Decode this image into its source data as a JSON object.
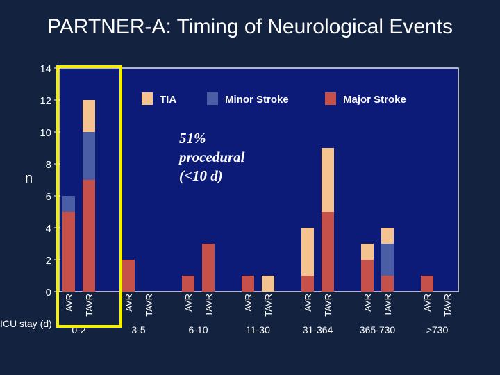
{
  "title": "PARTNER-A: Timing of Neurological Events",
  "chart_data": {
    "type": "bar",
    "stacked": true,
    "ylabel": "n",
    "xlabel": "ICU stay (d)",
    "ylim": [
      0,
      14
    ],
    "yticks": [
      0,
      2,
      4,
      6,
      8,
      10,
      12,
      14
    ],
    "grid": false,
    "legend_position": "top",
    "groups": [
      "0-2",
      "3-5",
      "6-10",
      "11-30",
      "31-364",
      "365-730",
      ">730"
    ],
    "arms": [
      "AVR",
      "TAVR"
    ],
    "series": [
      {
        "name": "Major Stroke",
        "color": "#c6504a",
        "values": [
          [
            5,
            7
          ],
          [
            2,
            0
          ],
          [
            1,
            3
          ],
          [
            1,
            0
          ],
          [
            1,
            5
          ],
          [
            2,
            1
          ],
          [
            1,
            0
          ]
        ]
      },
      {
        "name": "Minor Stroke",
        "color": "#4a5ea6",
        "values": [
          [
            1,
            3
          ],
          [
            0,
            0
          ],
          [
            0,
            0
          ],
          [
            0,
            0
          ],
          [
            0,
            0
          ],
          [
            0,
            2
          ],
          [
            0,
            0
          ]
        ]
      },
      {
        "name": "TIA",
        "color": "#f5c38f",
        "values": [
          [
            0,
            2
          ],
          [
            0,
            0
          ],
          [
            0,
            0
          ],
          [
            0,
            1
          ],
          [
            3,
            4
          ],
          [
            1,
            1
          ],
          [
            0,
            0
          ]
        ]
      }
    ],
    "annotation": {
      "lines": [
        "51%",
        "procedural",
        "(<10 d)"
      ]
    }
  }
}
